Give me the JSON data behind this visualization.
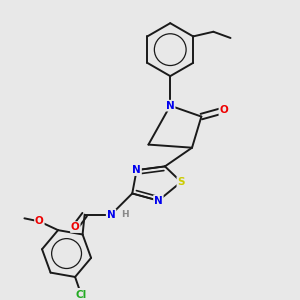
{
  "background_color": "#e8e8e8",
  "bond_color": "#1a1a1a",
  "bond_width": 1.4,
  "atom_colors": {
    "N": "#0000ee",
    "O": "#ee0000",
    "S": "#cccc00",
    "Cl": "#22aa22",
    "C": "#1a1a1a",
    "H": "#888888"
  },
  "font_size": 7.5
}
